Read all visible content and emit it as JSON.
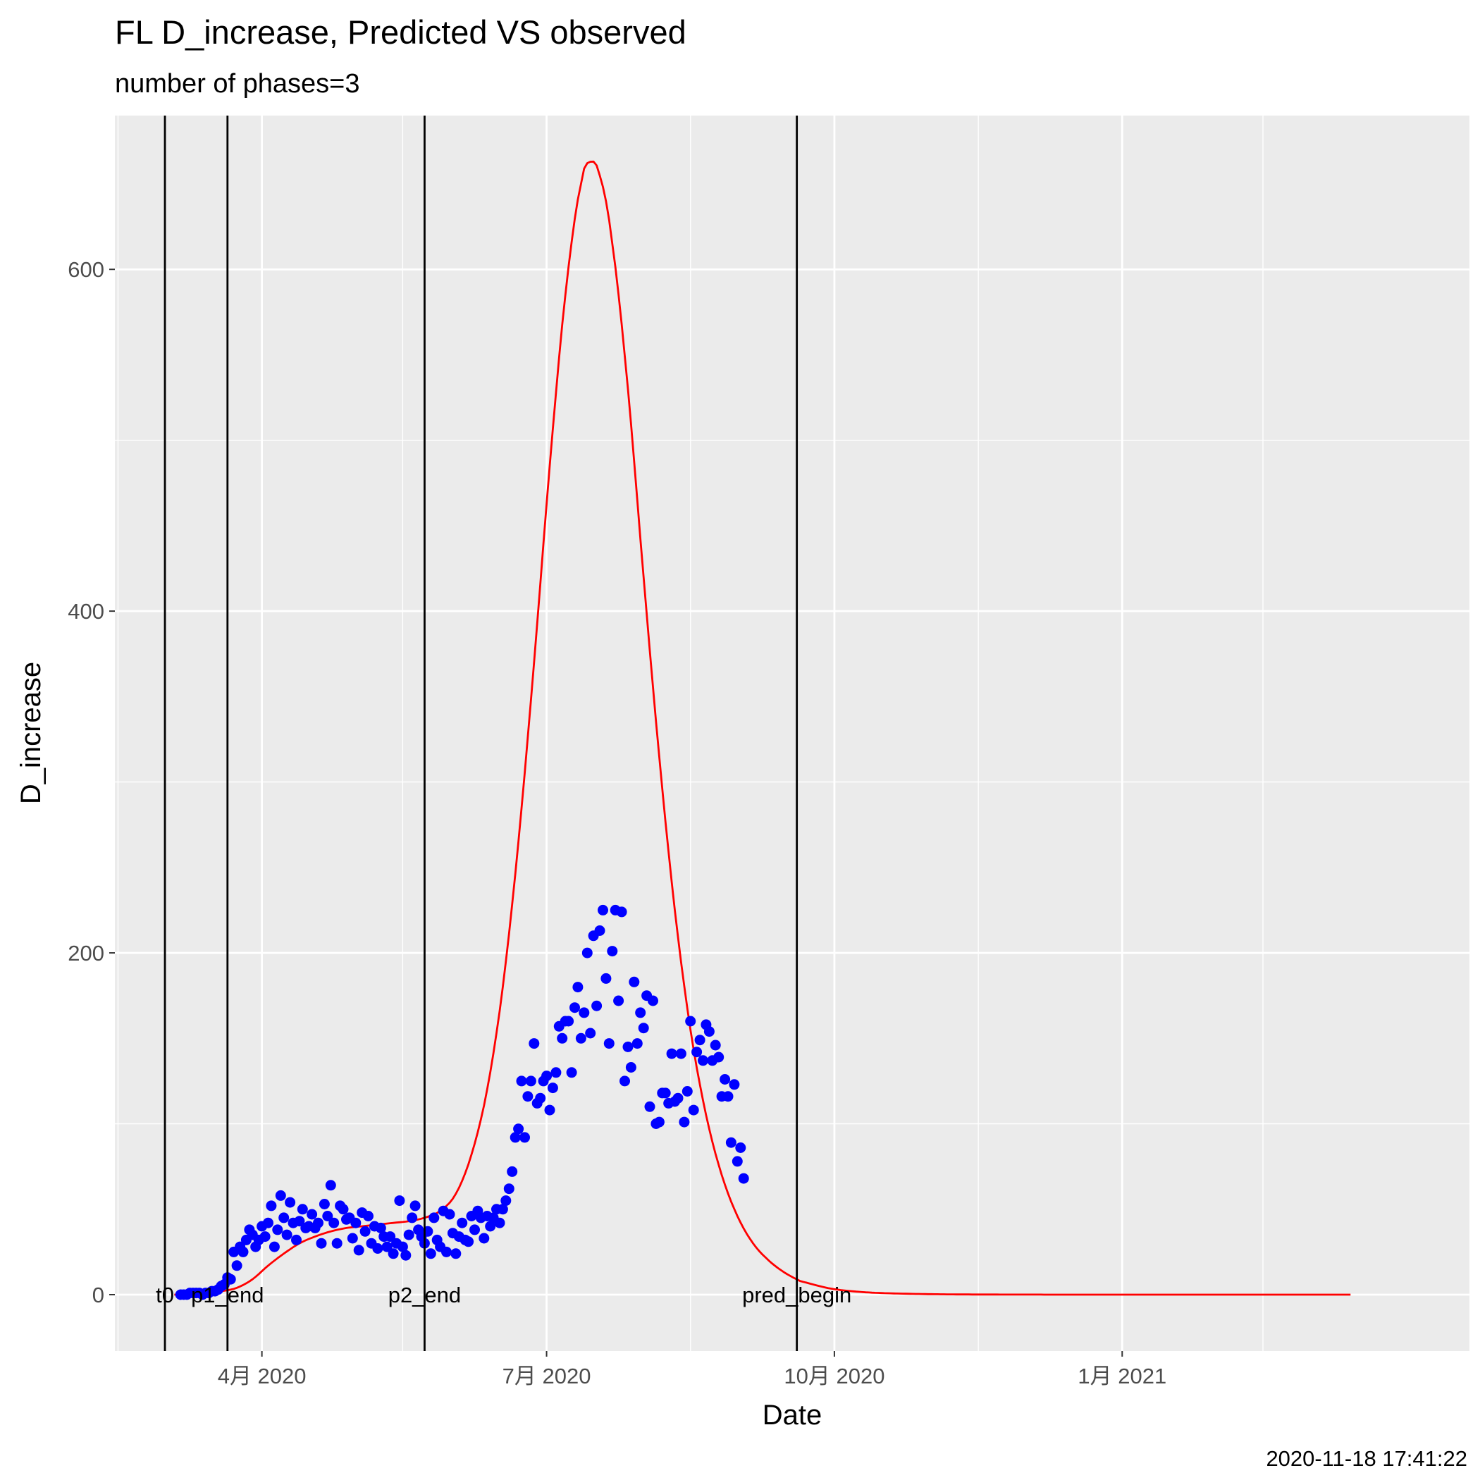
{
  "chart_data": {
    "type": "line",
    "title": "FL D_increase, Predicted VS observed",
    "subtitle": "number of phases=3",
    "xlabel": "Date",
    "ylabel": "D_increase",
    "caption": "2020-11-18 17:41:22",
    "xlim": [
      "2020-02-14",
      "2021-04-22"
    ],
    "ylim": [
      -33,
      690
    ],
    "x_ticks": [
      {
        "date": "2020-04-01",
        "label": "4月 2020"
      },
      {
        "date": "2020-07-01",
        "label": "7月 2020"
      },
      {
        "date": "2020-10-01",
        "label": "10月 2020"
      },
      {
        "date": "2021-01-01",
        "label": "1月 2021"
      }
    ],
    "y_ticks": [
      0,
      200,
      400,
      600
    ],
    "x_minor_gridlines": [
      "2020-02-15",
      "2020-05-16",
      "2020-08-16",
      "2020-11-16",
      "2021-02-15"
    ],
    "y_minor_gridlines": [
      100,
      300,
      500
    ],
    "vertical_markers": [
      {
        "label": "t0",
        "date": "2020-03-01"
      },
      {
        "label": "p1_end",
        "date": "2020-03-21"
      },
      {
        "label": "p2_end",
        "date": "2020-05-23"
      },
      {
        "label": "pred_begin",
        "date": "2020-09-19"
      }
    ],
    "series": [
      {
        "name": "Predicted",
        "kind": "line",
        "color": "#ff0000",
        "start_date": "2020-03-04",
        "step_days": 1,
        "control_points": [
          {
            "day": 0,
            "value": 0
          },
          {
            "day": 5,
            "value": 0
          },
          {
            "day": 10,
            "value": 1
          },
          {
            "day": 15,
            "value": 2
          },
          {
            "day": 20,
            "value": 4
          },
          {
            "day": 25,
            "value": 9
          },
          {
            "day": 30,
            "value": 17
          },
          {
            "day": 35,
            "value": 24
          },
          {
            "day": 40,
            "value": 30
          },
          {
            "day": 45,
            "value": 34
          },
          {
            "day": 50,
            "value": 37
          },
          {
            "day": 55,
            "value": 39
          },
          {
            "day": 60,
            "value": 40
          },
          {
            "day": 65,
            "value": 41
          },
          {
            "day": 70,
            "value": 42
          },
          {
            "day": 75,
            "value": 43
          },
          {
            "day": 80,
            "value": 45
          },
          {
            "day": 85,
            "value": 49
          },
          {
            "day": 90,
            "value": 59
          },
          {
            "day": 95,
            "value": 82
          },
          {
            "day": 100,
            "value": 120
          },
          {
            "day": 105,
            "value": 180
          },
          {
            "day": 110,
            "value": 265
          },
          {
            "day": 115,
            "value": 370
          },
          {
            "day": 120,
            "value": 485
          },
          {
            "day": 125,
            "value": 585
          },
          {
            "day": 130,
            "value": 650
          },
          {
            "day": 133,
            "value": 663
          },
          {
            "day": 136,
            "value": 655
          },
          {
            "day": 140,
            "value": 615
          },
          {
            "day": 145,
            "value": 530
          },
          {
            "day": 150,
            "value": 420
          },
          {
            "day": 155,
            "value": 315
          },
          {
            "day": 160,
            "value": 225
          },
          {
            "day": 165,
            "value": 155
          },
          {
            "day": 170,
            "value": 105
          },
          {
            "day": 175,
            "value": 70
          },
          {
            "day": 180,
            "value": 46
          },
          {
            "day": 185,
            "value": 30
          },
          {
            "day": 190,
            "value": 20
          },
          {
            "day": 195,
            "value": 13
          },
          {
            "day": 200,
            "value": 8
          },
          {
            "day": 210,
            "value": 3.5
          },
          {
            "day": 220,
            "value": 1.5
          },
          {
            "day": 230,
            "value": 0.7
          },
          {
            "day": 245,
            "value": 0.2
          },
          {
            "day": 265,
            "value": 0.05
          },
          {
            "day": 290,
            "value": 0
          },
          {
            "day": 376,
            "value": 0
          }
        ]
      },
      {
        "name": "Observed",
        "kind": "scatter",
        "color": "#0000ff",
        "start_date": "2020-03-06",
        "step_days": 1,
        "values": [
          0,
          0,
          0,
          1,
          1,
          1,
          1,
          0,
          1,
          1,
          2,
          2,
          3,
          5,
          6,
          10,
          9,
          25,
          17,
          28,
          25,
          32,
          38,
          35,
          28,
          32,
          40,
          34,
          42,
          52,
          28,
          38,
          58,
          45,
          35,
          54,
          42,
          32,
          43,
          50,
          39,
          40,
          47,
          39,
          42,
          30,
          53,
          46,
          64,
          42,
          30,
          52,
          50,
          44,
          45,
          33,
          42,
          26,
          48,
          37,
          46,
          30,
          40,
          27,
          39,
          34,
          28,
          34,
          24,
          30,
          55,
          28,
          23,
          35,
          45,
          52,
          38,
          34,
          30,
          37,
          24,
          45,
          32,
          28,
          49,
          25,
          47,
          36,
          24,
          34,
          42,
          32,
          31,
          46,
          38,
          49,
          45,
          33,
          46,
          40,
          45,
          50,
          42,
          50,
          55,
          62,
          72,
          92,
          97,
          125,
          92,
          116,
          125,
          147,
          112,
          115,
          125,
          128,
          108,
          121,
          130,
          157,
          150,
          160,
          160,
          130,
          168,
          180,
          150,
          165,
          200,
          153,
          210,
          169,
          213,
          225,
          185,
          147,
          201,
          225,
          172,
          224,
          125,
          145,
          133,
          183,
          147,
          165,
          156,
          175,
          110,
          172,
          100,
          101,
          118,
          118,
          112,
          141,
          113,
          115,
          141,
          101,
          119,
          160,
          108,
          142,
          149,
          137,
          158,
          154,
          137,
          146,
          139,
          116,
          126,
          116,
          89,
          123,
          78,
          86,
          68
        ]
      }
    ]
  }
}
